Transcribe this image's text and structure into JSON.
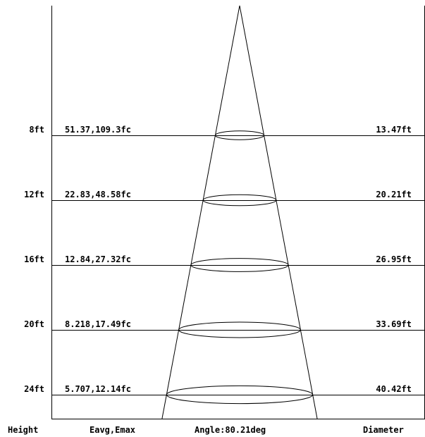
{
  "angle_label": "Angle:80.21deg",
  "footer": {
    "height": "Height",
    "illuminance": "Eavg,Emax",
    "diameter": "Diameter"
  },
  "rows": [
    {
      "height_ft": 8,
      "height": "8ft",
      "illuminance": "51.37,109.3fc",
      "diameter_ft": 13.47,
      "diameter": "13.47ft"
    },
    {
      "height_ft": 12,
      "height": "12ft",
      "illuminance": "22.83,48.58fc",
      "diameter_ft": 20.21,
      "diameter": "20.21ft"
    },
    {
      "height_ft": 16,
      "height": "16ft",
      "illuminance": "12.84,27.32fc",
      "diameter_ft": 26.95,
      "diameter": "26.95ft"
    },
    {
      "height_ft": 20,
      "height": "20ft",
      "illuminance": "8.218,17.49fc",
      "diameter_ft": 33.69,
      "diameter": "33.69ft"
    },
    {
      "height_ft": 24,
      "height": "24ft",
      "illuminance": "5.707,12.14fc",
      "diameter_ft": 40.42,
      "diameter": "40.42ft"
    }
  ]
}
